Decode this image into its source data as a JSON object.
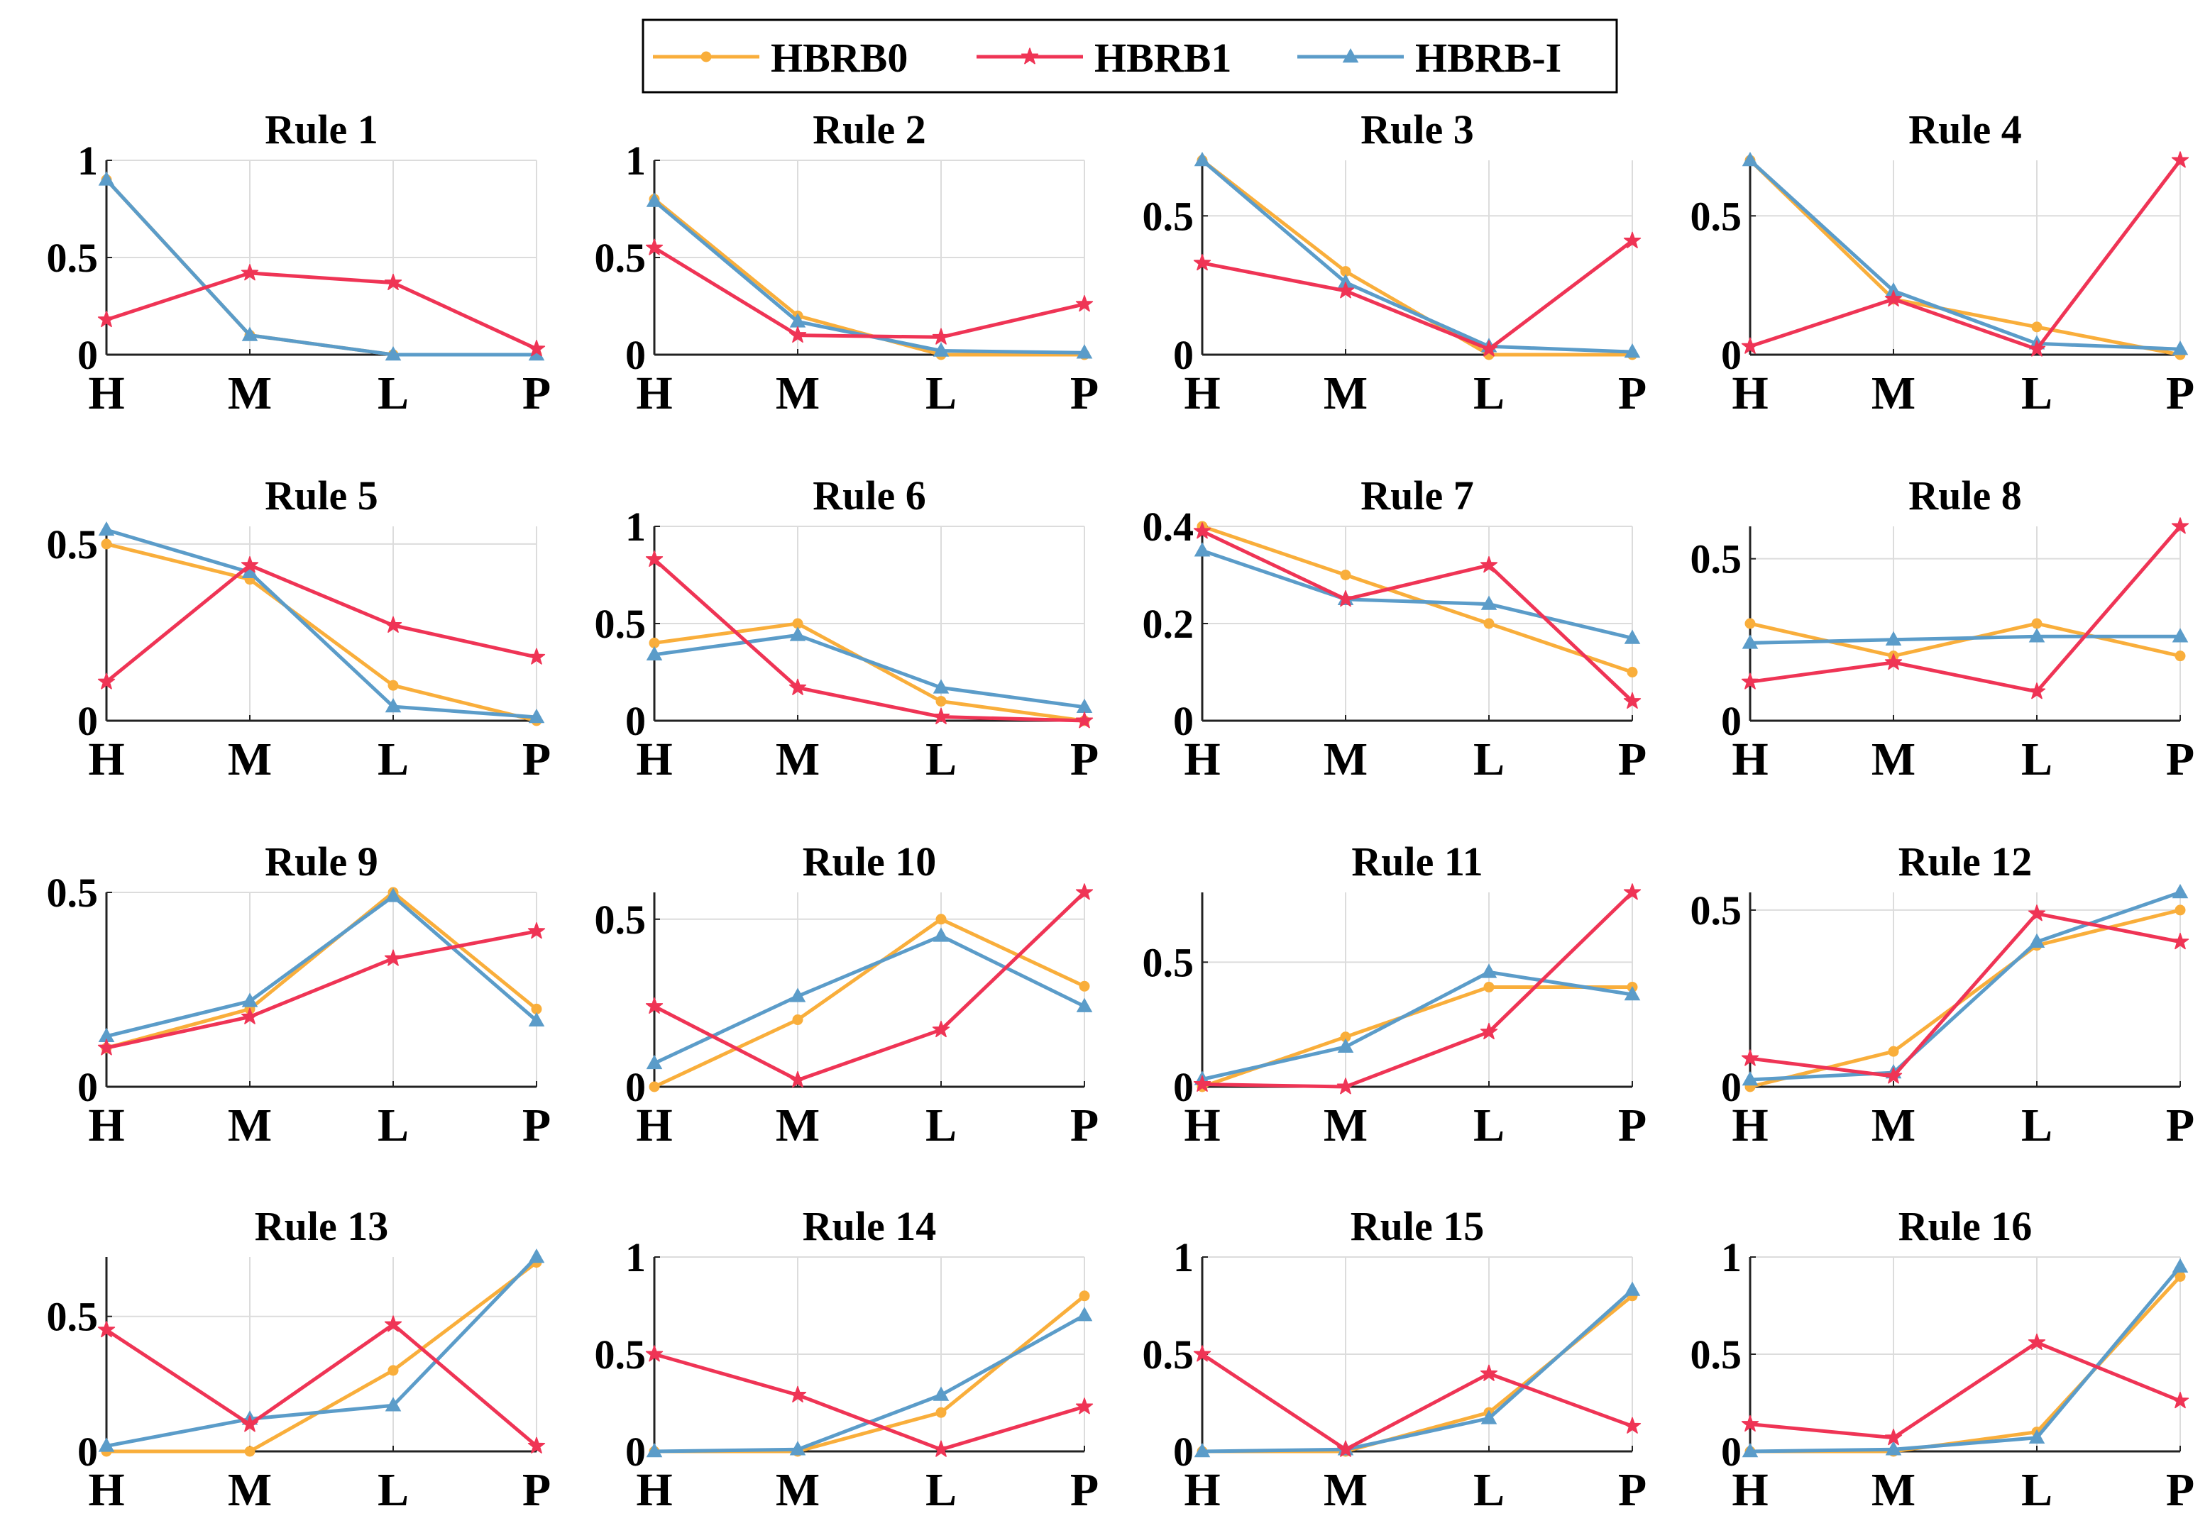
{
  "legend": {
    "entries": [
      {
        "name": "HBRB0",
        "color": "#F9AE3B",
        "marker": "circle"
      },
      {
        "name": "HBRB1",
        "color": "#EF3455",
        "marker": "star"
      },
      {
        "name": "HBRB-I",
        "color": "#5B9CC9",
        "marker": "triangle"
      }
    ]
  },
  "chart_data": [
    {
      "type": "line",
      "title": "Rule 1",
      "categories": [
        "H",
        "M",
        "L",
        "P"
      ],
      "ylim": [
        0,
        1
      ],
      "yticks": [
        0,
        0.5,
        1
      ],
      "ytick_labels": [
        "0",
        "0.5",
        "1"
      ],
      "grid": true,
      "series": [
        {
          "name": "HBRB0",
          "values": [
            0.9,
            0.1,
            0,
            0
          ]
        },
        {
          "name": "HBRB1",
          "values": [
            0.18,
            0.42,
            0.37,
            0.03
          ]
        },
        {
          "name": "HBRB-I",
          "values": [
            0.9,
            0.1,
            0,
            0
          ]
        }
      ]
    },
    {
      "type": "line",
      "title": "Rule 2",
      "categories": [
        "H",
        "M",
        "L",
        "P"
      ],
      "ylim": [
        0,
        1
      ],
      "yticks": [
        0,
        0.5,
        1
      ],
      "ytick_labels": [
        "0",
        "0.5",
        "1"
      ],
      "grid": true,
      "series": [
        {
          "name": "HBRB0",
          "values": [
            0.8,
            0.2,
            0,
            0
          ]
        },
        {
          "name": "HBRB1",
          "values": [
            0.55,
            0.1,
            0.09,
            0.26
          ]
        },
        {
          "name": "HBRB-I",
          "values": [
            0.79,
            0.17,
            0.02,
            0.01
          ]
        }
      ]
    },
    {
      "type": "line",
      "title": "Rule 3",
      "categories": [
        "H",
        "M",
        "L",
        "P"
      ],
      "ylim": [
        0,
        0.7
      ],
      "yticks": [
        0,
        0.5
      ],
      "ytick_labels": [
        "0",
        "0.5"
      ],
      "grid": true,
      "series": [
        {
          "name": "HBRB0",
          "values": [
            0.7,
            0.3,
            0,
            0
          ]
        },
        {
          "name": "HBRB1",
          "values": [
            0.33,
            0.23,
            0.02,
            0.41
          ]
        },
        {
          "name": "HBRB-I",
          "values": [
            0.7,
            0.26,
            0.03,
            0.01
          ]
        }
      ]
    },
    {
      "type": "line",
      "title": "Rule 4",
      "categories": [
        "H",
        "M",
        "L",
        "P"
      ],
      "ylim": [
        0,
        0.7
      ],
      "yticks": [
        0,
        0.5
      ],
      "ytick_labels": [
        "0",
        "0.5"
      ],
      "grid": true,
      "series": [
        {
          "name": "HBRB0",
          "values": [
            0.7,
            0.2,
            0.1,
            0
          ]
        },
        {
          "name": "HBRB1",
          "values": [
            0.03,
            0.2,
            0.02,
            0.7
          ]
        },
        {
          "name": "HBRB-I",
          "values": [
            0.7,
            0.23,
            0.04,
            0.02
          ]
        }
      ]
    },
    {
      "type": "line",
      "title": "Rule 5",
      "categories": [
        "H",
        "M",
        "L",
        "P"
      ],
      "ylim": [
        0,
        0.55
      ],
      "yticks": [
        0,
        0.5
      ],
      "ytick_labels": [
        "0",
        "0.5"
      ],
      "grid": true,
      "series": [
        {
          "name": "HBRB0",
          "values": [
            0.5,
            0.4,
            0.1,
            0
          ]
        },
        {
          "name": "HBRB1",
          "values": [
            0.11,
            0.44,
            0.27,
            0.18
          ]
        },
        {
          "name": "HBRB-I",
          "values": [
            0.54,
            0.42,
            0.04,
            0.01
          ]
        }
      ]
    },
    {
      "type": "line",
      "title": "Rule 6",
      "categories": [
        "H",
        "M",
        "L",
        "P"
      ],
      "ylim": [
        0,
        1
      ],
      "yticks": [
        0,
        0.5,
        1
      ],
      "ytick_labels": [
        "0",
        "0.5",
        "1"
      ],
      "grid": true,
      "series": [
        {
          "name": "HBRB0",
          "values": [
            0.4,
            0.5,
            0.1,
            0
          ]
        },
        {
          "name": "HBRB1",
          "values": [
            0.83,
            0.17,
            0.02,
            0
          ]
        },
        {
          "name": "HBRB-I",
          "values": [
            0.34,
            0.44,
            0.17,
            0.07
          ]
        }
      ]
    },
    {
      "type": "line",
      "title": "Rule 7",
      "categories": [
        "H",
        "M",
        "L",
        "P"
      ],
      "ylim": [
        0,
        0.4
      ],
      "yticks": [
        0,
        0.2,
        0.4
      ],
      "ytick_labels": [
        "0",
        "0.2",
        "0.4"
      ],
      "grid": true,
      "series": [
        {
          "name": "HBRB0",
          "values": [
            0.4,
            0.3,
            0.2,
            0.1
          ]
        },
        {
          "name": "HBRB1",
          "values": [
            0.39,
            0.25,
            0.32,
            0.04
          ]
        },
        {
          "name": "HBRB-I",
          "values": [
            0.35,
            0.25,
            0.24,
            0.17
          ]
        }
      ]
    },
    {
      "type": "line",
      "title": "Rule 8",
      "categories": [
        "H",
        "M",
        "L",
        "P"
      ],
      "ylim": [
        0,
        0.6
      ],
      "yticks": [
        0,
        0.5
      ],
      "ytick_labels": [
        "0",
        "0.5"
      ],
      "grid": true,
      "series": [
        {
          "name": "HBRB0",
          "values": [
            0.3,
            0.2,
            0.3,
            0.2
          ]
        },
        {
          "name": "HBRB1",
          "values": [
            0.12,
            0.18,
            0.09,
            0.6
          ]
        },
        {
          "name": "HBRB-I",
          "values": [
            0.24,
            0.25,
            0.26,
            0.26
          ]
        }
      ]
    },
    {
      "type": "line",
      "title": "Rule 9",
      "categories": [
        "H",
        "M",
        "L",
        "P"
      ],
      "ylim": [
        0,
        0.5
      ],
      "yticks": [
        0,
        0.5
      ],
      "ytick_labels": [
        "0",
        "0.5"
      ],
      "grid": true,
      "series": [
        {
          "name": "HBRB0",
          "values": [
            0.1,
            0.2,
            0.5,
            0.2
          ]
        },
        {
          "name": "HBRB1",
          "values": [
            0.1,
            0.18,
            0.33,
            0.4
          ]
        },
        {
          "name": "HBRB-I",
          "values": [
            0.13,
            0.22,
            0.49,
            0.17
          ]
        }
      ]
    },
    {
      "type": "line",
      "title": "Rule 10",
      "categories": [
        "H",
        "M",
        "L",
        "P"
      ],
      "ylim": [
        0,
        0.58
      ],
      "yticks": [
        0,
        0.5
      ],
      "ytick_labels": [
        "0",
        "0.5"
      ],
      "grid": true,
      "series": [
        {
          "name": "HBRB0",
          "values": [
            0,
            0.2,
            0.5,
            0.3
          ]
        },
        {
          "name": "HBRB1",
          "values": [
            0.24,
            0.02,
            0.17,
            0.58
          ]
        },
        {
          "name": "HBRB-I",
          "values": [
            0.07,
            0.27,
            0.45,
            0.24
          ]
        }
      ]
    },
    {
      "type": "line",
      "title": "Rule 11",
      "categories": [
        "H",
        "M",
        "L",
        "P"
      ],
      "ylim": [
        0,
        0.78
      ],
      "yticks": [
        0,
        0.5
      ],
      "ytick_labels": [
        "0",
        "0.5"
      ],
      "grid": true,
      "series": [
        {
          "name": "HBRB0",
          "values": [
            0,
            0.2,
            0.4,
            0.4
          ]
        },
        {
          "name": "HBRB1",
          "values": [
            0.01,
            0,
            0.22,
            0.78
          ]
        },
        {
          "name": "HBRB-I",
          "values": [
            0.03,
            0.16,
            0.46,
            0.37
          ]
        }
      ]
    },
    {
      "type": "line",
      "title": "Rule 12",
      "categories": [
        "H",
        "M",
        "L",
        "P"
      ],
      "ylim": [
        0,
        0.55
      ],
      "yticks": [
        0,
        0.5
      ],
      "ytick_labels": [
        "0",
        "0.5"
      ],
      "grid": true,
      "series": [
        {
          "name": "HBRB0",
          "values": [
            0,
            0.1,
            0.4,
            0.5
          ]
        },
        {
          "name": "HBRB1",
          "values": [
            0.08,
            0.03,
            0.49,
            0.41
          ]
        },
        {
          "name": "HBRB-I",
          "values": [
            0.02,
            0.04,
            0.41,
            0.55
          ]
        }
      ]
    },
    {
      "type": "line",
      "title": "Rule 13",
      "categories": [
        "H",
        "M",
        "L",
        "P"
      ],
      "ylim": [
        0,
        0.72
      ],
      "yticks": [
        0,
        0.5
      ],
      "ytick_labels": [
        "0",
        "0.5"
      ],
      "grid": true,
      "series": [
        {
          "name": "HBRB0",
          "values": [
            0,
            0,
            0.3,
            0.7
          ]
        },
        {
          "name": "HBRB1",
          "values": [
            0.45,
            0.1,
            0.47,
            0.02
          ]
        },
        {
          "name": "HBRB-I",
          "values": [
            0.02,
            0.12,
            0.17,
            0.72
          ]
        }
      ]
    },
    {
      "type": "line",
      "title": "Rule 14",
      "categories": [
        "H",
        "M",
        "L",
        "P"
      ],
      "ylim": [
        0,
        1
      ],
      "yticks": [
        0,
        0.5,
        1
      ],
      "ytick_labels": [
        "0",
        "0.5",
        "1"
      ],
      "grid": true,
      "series": [
        {
          "name": "HBRB0",
          "values": [
            0,
            0,
            0.2,
            0.8
          ]
        },
        {
          "name": "HBRB1",
          "values": [
            0.5,
            0.29,
            0.01,
            0.23
          ]
        },
        {
          "name": "HBRB-I",
          "values": [
            0,
            0.01,
            0.29,
            0.7
          ]
        }
      ]
    },
    {
      "type": "line",
      "title": "Rule 15",
      "categories": [
        "H",
        "M",
        "L",
        "P"
      ],
      "ylim": [
        0,
        1
      ],
      "yticks": [
        0,
        0.5,
        1
      ],
      "ytick_labels": [
        "0",
        "0.5",
        "1"
      ],
      "grid": true,
      "series": [
        {
          "name": "HBRB0",
          "values": [
            0,
            0,
            0.2,
            0.8
          ]
        },
        {
          "name": "HBRB1",
          "values": [
            0.5,
            0.01,
            0.4,
            0.13
          ]
        },
        {
          "name": "HBRB-I",
          "values": [
            0,
            0.01,
            0.17,
            0.83
          ]
        }
      ]
    },
    {
      "type": "line",
      "title": "Rule 16",
      "categories": [
        "H",
        "M",
        "L",
        "P"
      ],
      "ylim": [
        0,
        1
      ],
      "yticks": [
        0,
        0.5,
        1
      ],
      "ytick_labels": [
        "0",
        "0.5",
        "1"
      ],
      "grid": true,
      "series": [
        {
          "name": "HBRB0",
          "values": [
            0,
            0,
            0.1,
            0.9
          ]
        },
        {
          "name": "HBRB1",
          "values": [
            0.14,
            0.07,
            0.56,
            0.26
          ]
        },
        {
          "name": "HBRB-I",
          "values": [
            0,
            0.01,
            0.07,
            0.95
          ]
        }
      ]
    }
  ]
}
